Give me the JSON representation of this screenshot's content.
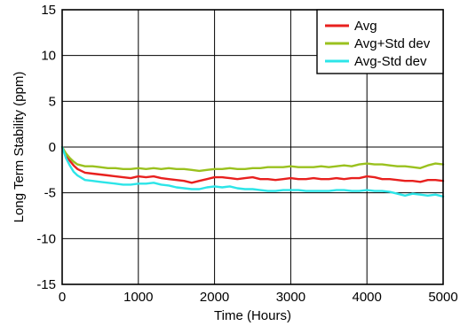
{
  "chart_data": {
    "type": "line",
    "xlabel": "Time (Hours)",
    "ylabel": "Long Term Stability (ppm)",
    "xlim": [
      0,
      5000
    ],
    "ylim": [
      -15,
      15
    ],
    "x_ticks": [
      0,
      1000,
      2000,
      3000,
      4000,
      5000
    ],
    "y_ticks": [
      -15,
      -10,
      -5,
      0,
      5,
      10,
      15
    ],
    "grid": true,
    "legend_position": "top-right",
    "x": [
      0,
      50,
      100,
      150,
      200,
      300,
      400,
      500,
      600,
      700,
      800,
      900,
      1000,
      1100,
      1200,
      1300,
      1400,
      1500,
      1600,
      1700,
      1800,
      1900,
      2000,
      2100,
      2200,
      2300,
      2400,
      2500,
      2600,
      2700,
      2800,
      2900,
      3000,
      3100,
      3200,
      3300,
      3400,
      3500,
      3600,
      3700,
      3800,
      3900,
      4000,
      4100,
      4200,
      4300,
      4400,
      4500,
      4600,
      4700,
      4800,
      4900,
      5000
    ],
    "series": [
      {
        "name": "Avg",
        "color": "#e8201e",
        "values": [
          0,
          -0.9,
          -1.5,
          -2.0,
          -2.4,
          -2.8,
          -2.9,
          -3.0,
          -3.1,
          -3.2,
          -3.3,
          -3.4,
          -3.2,
          -3.3,
          -3.2,
          -3.4,
          -3.5,
          -3.6,
          -3.7,
          -3.9,
          -3.7,
          -3.5,
          -3.3,
          -3.3,
          -3.4,
          -3.5,
          -3.4,
          -3.3,
          -3.5,
          -3.5,
          -3.6,
          -3.5,
          -3.4,
          -3.5,
          -3.5,
          -3.4,
          -3.5,
          -3.5,
          -3.4,
          -3.5,
          -3.4,
          -3.4,
          -3.2,
          -3.3,
          -3.5,
          -3.5,
          -3.6,
          -3.7,
          -3.7,
          -3.8,
          -3.6,
          -3.6,
          -3.7
        ]
      },
      {
        "name": "Avg+Std dev",
        "color": "#9ac11e",
        "values": [
          0,
          -0.7,
          -1.2,
          -1.6,
          -1.9,
          -2.1,
          -2.1,
          -2.2,
          -2.3,
          -2.3,
          -2.4,
          -2.4,
          -2.3,
          -2.4,
          -2.3,
          -2.4,
          -2.3,
          -2.4,
          -2.4,
          -2.5,
          -2.6,
          -2.5,
          -2.4,
          -2.4,
          -2.3,
          -2.4,
          -2.4,
          -2.3,
          -2.3,
          -2.2,
          -2.2,
          -2.2,
          -2.1,
          -2.2,
          -2.2,
          -2.2,
          -2.1,
          -2.2,
          -2.1,
          -2.0,
          -2.1,
          -1.9,
          -1.8,
          -1.9,
          -1.9,
          -2.0,
          -2.1,
          -2.1,
          -2.2,
          -2.3,
          -2.0,
          -1.8,
          -1.9
        ]
      },
      {
        "name": "Avg-Std dev",
        "color": "#2ce5e8",
        "values": [
          0,
          -1.2,
          -2.0,
          -2.7,
          -3.1,
          -3.6,
          -3.7,
          -3.8,
          -3.9,
          -4.0,
          -4.1,
          -4.1,
          -4.0,
          -4.0,
          -3.9,
          -4.1,
          -4.2,
          -4.4,
          -4.5,
          -4.6,
          -4.6,
          -4.4,
          -4.3,
          -4.4,
          -4.3,
          -4.5,
          -4.6,
          -4.6,
          -4.7,
          -4.8,
          -4.8,
          -4.7,
          -4.7,
          -4.7,
          -4.8,
          -4.8,
          -4.8,
          -4.8,
          -4.7,
          -4.7,
          -4.8,
          -4.8,
          -4.7,
          -4.8,
          -4.8,
          -4.9,
          -5.1,
          -5.3,
          -5.1,
          -5.2,
          -5.3,
          -5.2,
          -5.4
        ]
      }
    ]
  }
}
